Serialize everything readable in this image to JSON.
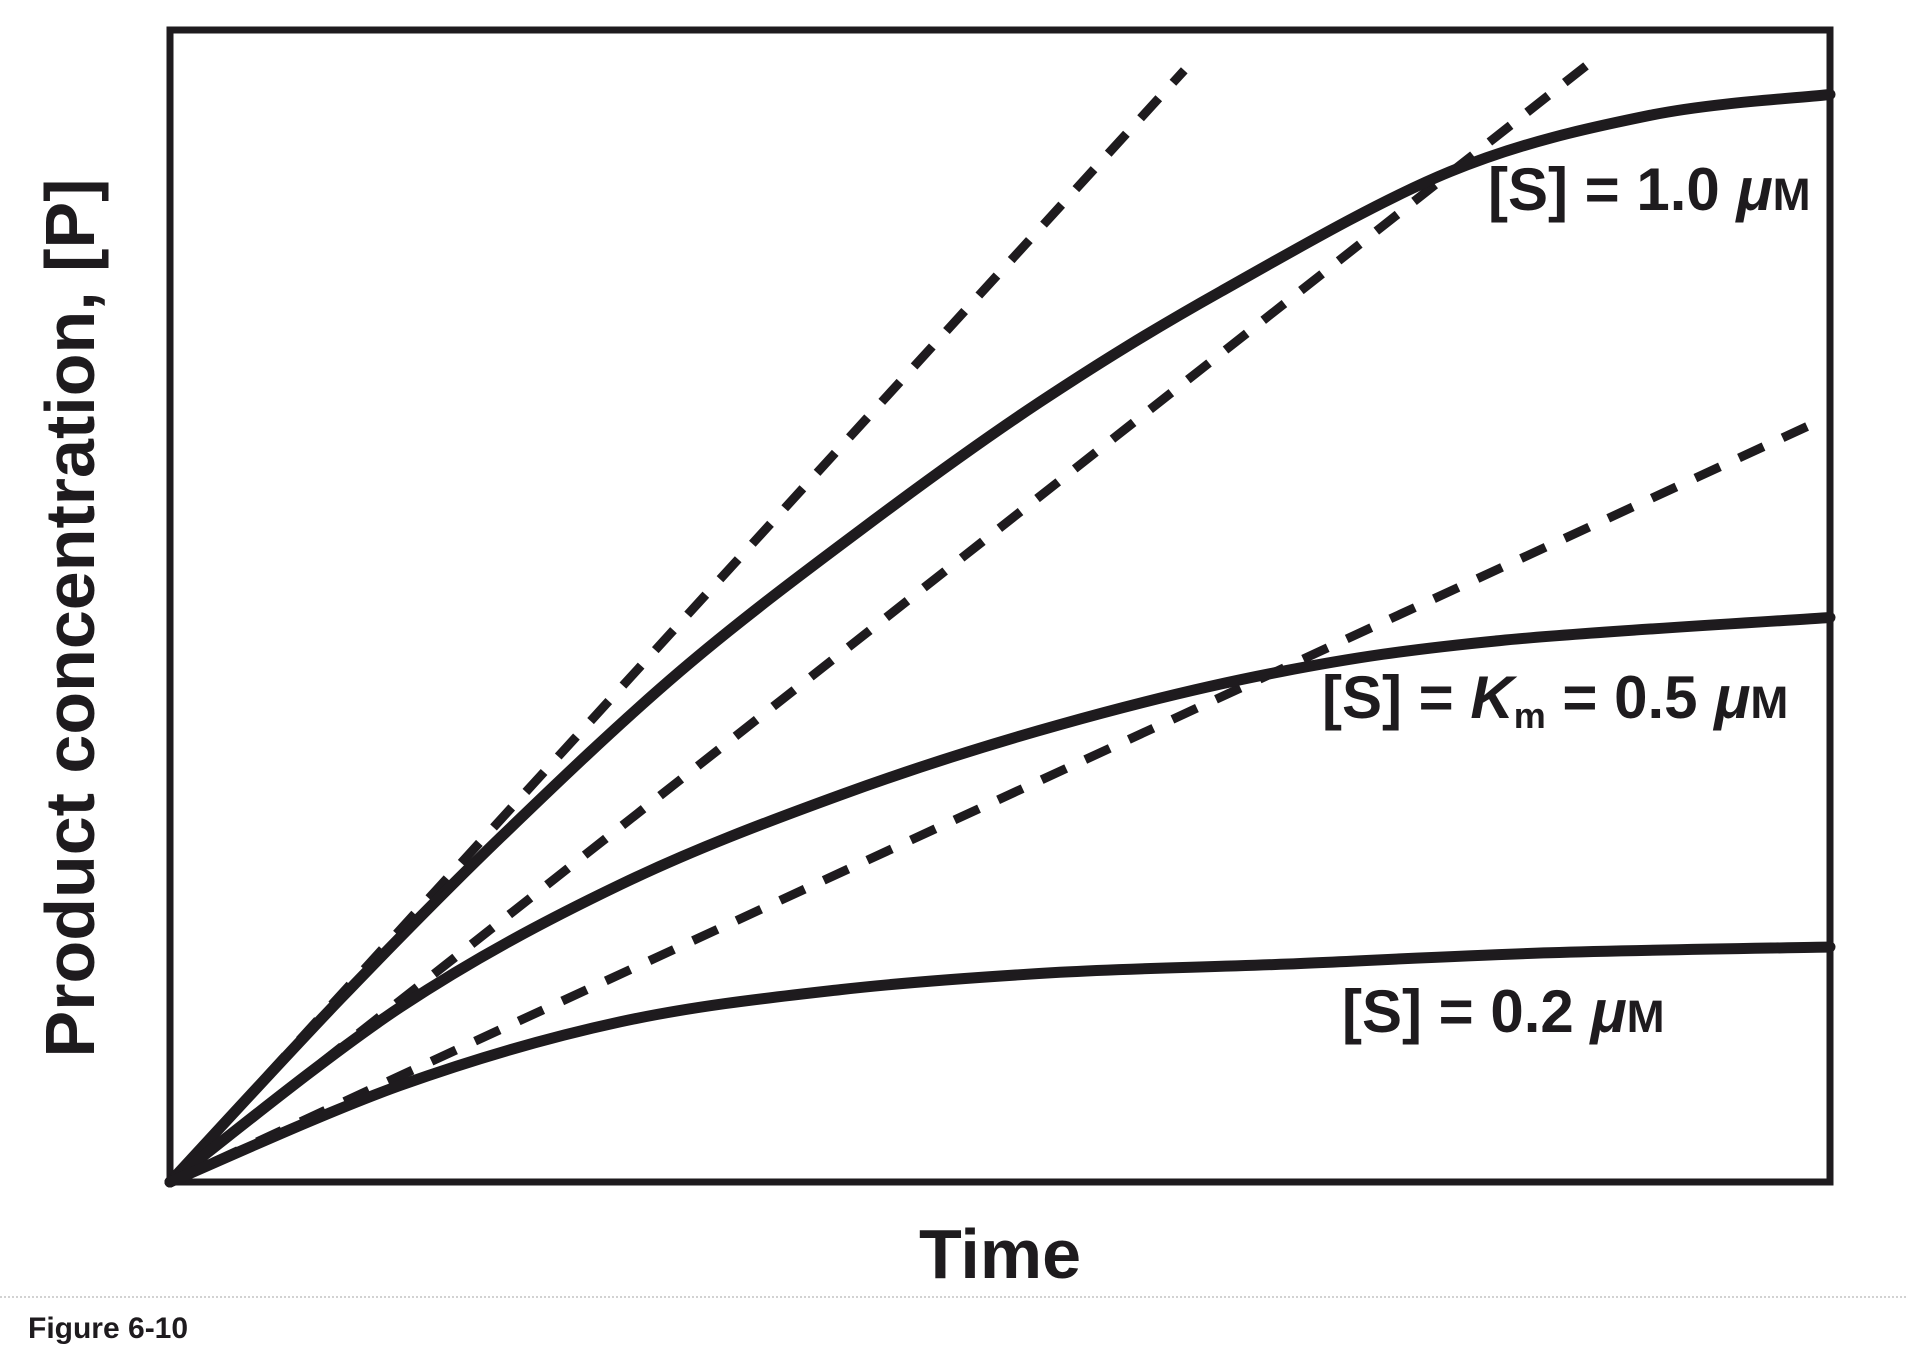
{
  "figure": {
    "caption": "Figure 6-10"
  },
  "chart_data": {
    "type": "line",
    "title": "",
    "xlabel": "Time",
    "ylabel": "Product concentration, [P]",
    "x_ticks": [],
    "y_ticks": [],
    "axis_ranges_shown": false,
    "grid": false,
    "legend_position": "labels-on-plot",
    "ink_color": "#1e1b1e",
    "description_visible_only": "Progress curves of product concentration versus time at three substrate concentrations, each with a dashed initial-velocity tangent from the origin",
    "series": [
      {
        "name": "[S] = 1.0 μM",
        "style": "solid",
        "label_parts": [
          {
            "t": "[S] = 1.0 ",
            "s": "b"
          },
          {
            "t": "μ",
            "s": "i"
          },
          {
            "t": "M",
            "s": "sc"
          }
        ],
        "points": [
          [
            0,
            0
          ],
          [
            10.2,
            15.8
          ],
          [
            19.9,
            29.9
          ],
          [
            30.7,
            44.3
          ],
          [
            41.6,
            56.6
          ],
          [
            52.4,
            67.7
          ],
          [
            63.3,
            77.3
          ],
          [
            77.1,
            87.7
          ],
          [
            89.2,
            92.6
          ],
          [
            100,
            94.4
          ]
        ]
      },
      {
        "name": "[S] = Km = 0.5 μM",
        "style": "solid",
        "label_parts": [
          {
            "t": "[S] = ",
            "s": "b"
          },
          {
            "t": "K",
            "s": "i"
          },
          {
            "t": "m",
            "s": "sub"
          },
          {
            "t": " = 0.5 ",
            "s": "b"
          },
          {
            "t": "μ",
            "s": "i"
          },
          {
            "t": "M",
            "s": "sc"
          }
        ],
        "points": [
          [
            0,
            0
          ],
          [
            13.9,
            15.2
          ],
          [
            27.1,
            25.8
          ],
          [
            40.4,
            33.6
          ],
          [
            53.6,
            39.7
          ],
          [
            66.9,
            44.3
          ],
          [
            80.1,
            47.0
          ],
          [
            100,
            49.0
          ]
        ]
      },
      {
        "name": "[S] = 0.2 μM",
        "style": "solid",
        "label_parts": [
          {
            "t": "[S] = 0.2 ",
            "s": "b"
          },
          {
            "t": "μ",
            "s": "i"
          },
          {
            "t": "M",
            "s": "sc"
          }
        ],
        "points": [
          [
            0,
            0
          ],
          [
            13.9,
            8.4
          ],
          [
            27.1,
            13.9
          ],
          [
            40.4,
            16.7
          ],
          [
            53.6,
            18.2
          ],
          [
            66.9,
            18.9
          ],
          [
            83.1,
            19.9
          ],
          [
            100,
            20.4
          ]
        ]
      }
    ],
    "tangents": [
      {
        "for_series": "[S] = 1.0 μM",
        "style": "dashed",
        "from": [
          0,
          0
        ],
        "to": [
          61.1,
          96.5
        ]
      },
      {
        "for_series": "[S] = Km = 0.5 μM",
        "style": "dashed",
        "from": [
          0,
          0
        ],
        "to": [
          85.4,
          97.0
        ]
      },
      {
        "for_series": "[S] = 0.2 μM",
        "style": "dashed",
        "from": [
          0,
          0
        ],
        "to": [
          98.8,
          65.7
        ]
      }
    ]
  }
}
